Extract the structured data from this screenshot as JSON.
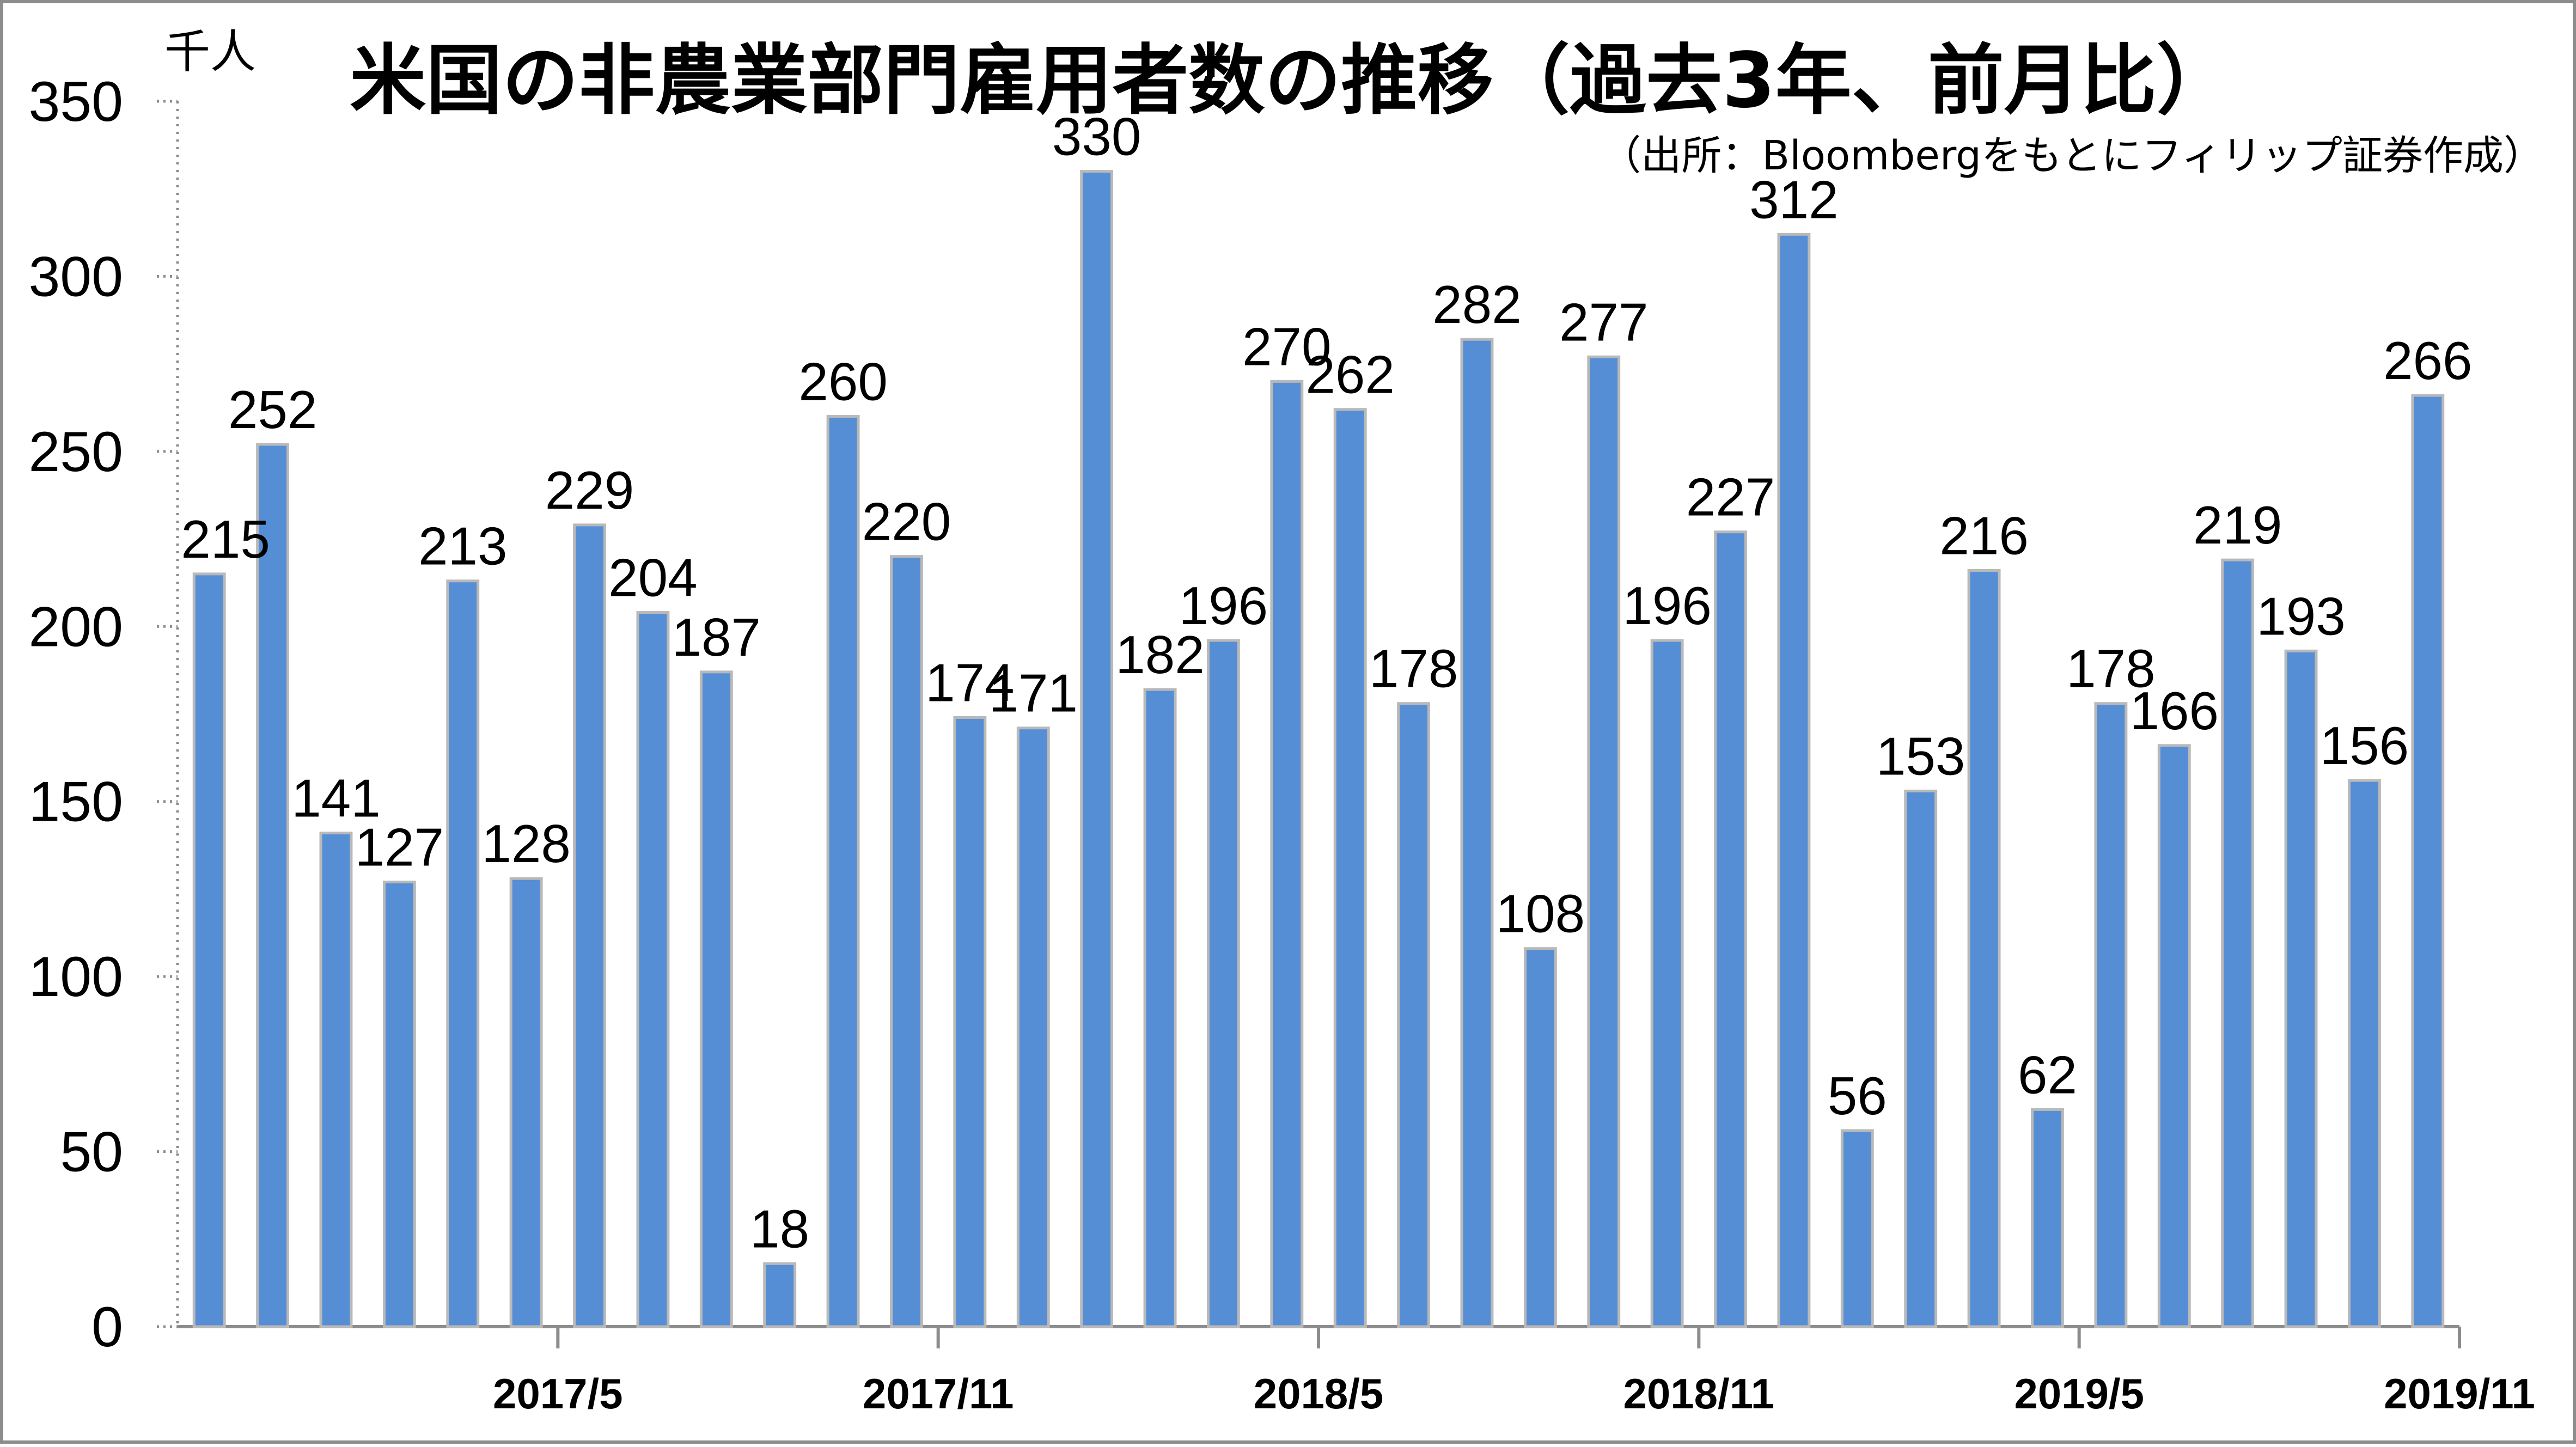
{
  "chart_data": {
    "type": "bar",
    "title": "米国の非農業部門雇用者数の推移（過去3年、前月比）",
    "source": "（出所：Bloombergをもとにフィリップ証券作成）",
    "unit": "千人",
    "ylim": [
      0,
      350
    ],
    "yticks": [
      0,
      50,
      100,
      150,
      200,
      250,
      300,
      350
    ],
    "xtick_labels": [
      {
        "index": 6,
        "label": "2017/5"
      },
      {
        "index": 12,
        "label": "2017/11"
      },
      {
        "index": 18,
        "label": "2018/5"
      },
      {
        "index": 24,
        "label": "2018/11"
      },
      {
        "index": 30,
        "label": "2019/5"
      },
      {
        "index": 36,
        "label": "2019/11"
      }
    ],
    "values": [
      215,
      252,
      141,
      127,
      213,
      128,
      229,
      204,
      187,
      18,
      260,
      220,
      174,
      171,
      330,
      182,
      196,
      270,
      262,
      178,
      282,
      108,
      277,
      196,
      227,
      312,
      56,
      153,
      216,
      62,
      178,
      166,
      219,
      193,
      156,
      266
    ],
    "grid": false,
    "legend": "none",
    "colors": {
      "bar": "#558ed5",
      "bar_edge": "#b9b9b9",
      "axis": "#8c8c8c",
      "frame": "#8c8c8c"
    }
  }
}
